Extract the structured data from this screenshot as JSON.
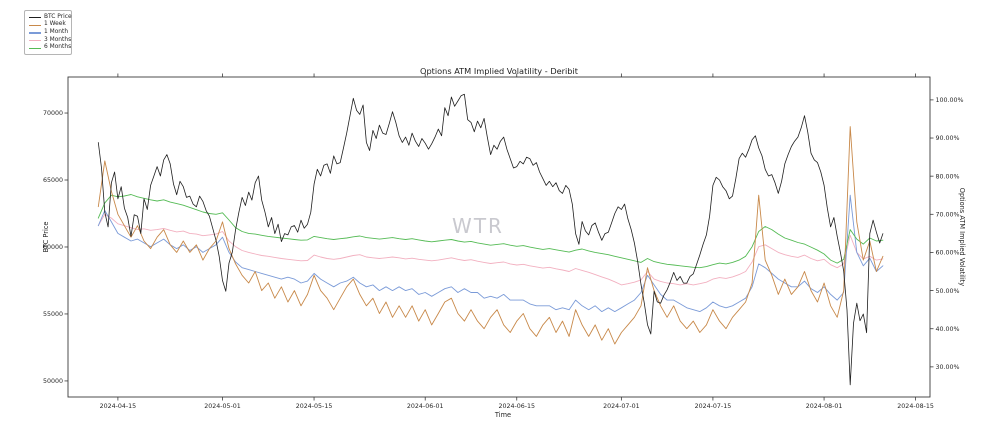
{
  "figure": {
    "title": "Options ATM Implied Volatility - Deribit",
    "watermark": "WTR",
    "background": "#ffffff"
  },
  "legend": {
    "items": [
      {
        "label": "BTC Price",
        "color": "#1f1f1f"
      },
      {
        "label": "1 Week",
        "color": "#c8894a"
      },
      {
        "label": "1 Month",
        "color": "#7b9bd8"
      },
      {
        "label": "3 Months",
        "color": "#f2b0c0"
      },
      {
        "label": "6 Months",
        "color": "#55bb55"
      }
    ]
  },
  "axes": {
    "left": {
      "label": "BTC Price",
      "ticks": [
        50000,
        55000,
        60000,
        65000,
        70000
      ],
      "range": [
        48800,
        72690
      ]
    },
    "right": {
      "label": "Options ATM Implied Volatility",
      "tick_labels": [
        "30.00%",
        "40.00%",
        "50.00%",
        "60.00%",
        "70.00%",
        "80.00%",
        "90.00%",
        "100.00%"
      ],
      "tick_values": [
        30,
        40,
        50,
        60,
        70,
        80,
        90,
        100
      ],
      "range": [
        22.1,
        106.0
      ]
    },
    "x": {
      "label": "Time",
      "tick_labels": [
        "2024-04-15",
        "2024-05-01",
        "2024-05-15",
        "2024-06-01",
        "2024-06-15",
        "2024-07-01",
        "2024-07-15",
        "2024-08-01",
        "2024-08-15"
      ],
      "tick_days": [
        3,
        19,
        33,
        50,
        64,
        80,
        94,
        111,
        125
      ],
      "range_days": [
        -4.63,
        127.2
      ],
      "day0_date": "2024-04-12"
    }
  },
  "chart_data": {
    "type": "line",
    "title": "Options ATM Implied Volatility - Deribit",
    "xlabel": "Time",
    "ylabel_left": "BTC Price",
    "ylabel_right": "Options ATM Implied Volatility",
    "x_start_date": "2024-04-12",
    "x_end_date": "2024-08-10",
    "grid": false,
    "legend_position": "upper-left-outside",
    "series": [
      {
        "name": "BTC Price",
        "axis": "price",
        "color": "#1f1f1f",
        "day_step": 0.5,
        "values": [
          67800,
          65900,
          62600,
          61500,
          64800,
          65600,
          63600,
          64500,
          62900,
          62200,
          60800,
          62400,
          62300,
          61000,
          63600,
          62800,
          64600,
          65300,
          66000,
          65300,
          66500,
          66900,
          66200,
          64700,
          63900,
          64900,
          64500,
          63700,
          63800,
          63200,
          63000,
          63800,
          63400,
          62700,
          62300,
          61400,
          60500,
          59300,
          57500,
          56700,
          58800,
          59600,
          61300,
          62600,
          63700,
          63100,
          64100,
          63500,
          64800,
          65300,
          63500,
          62600,
          61500,
          62200,
          61000,
          61700,
          60400,
          61000,
          60900,
          61500,
          61600,
          61100,
          62000,
          61400,
          61700,
          62600,
          64700,
          65800,
          65300,
          66100,
          66200,
          65500,
          66800,
          66200,
          66300,
          67400,
          68500,
          69800,
          71100,
          70200,
          69900,
          70600,
          67800,
          67200,
          68700,
          68100,
          69100,
          68500,
          68400,
          69200,
          70100,
          69300,
          68300,
          67800,
          68200,
          67600,
          68500,
          67900,
          67500,
          68100,
          67750,
          67300,
          67700,
          68200,
          68800,
          68300,
          70400,
          69800,
          71200,
          70500,
          70900,
          71300,
          71400,
          69500,
          69300,
          68600,
          69400,
          68900,
          69600,
          68200,
          66900,
          67600,
          67300,
          67900,
          68200,
          67300,
          66600,
          65900,
          66000,
          66400,
          66200,
          66700,
          66600,
          66100,
          66300,
          65600,
          65100,
          64600,
          64900,
          64500,
          64800,
          64200,
          64000,
          64600,
          64300,
          63200,
          61000,
          60200,
          61900,
          61200,
          60900,
          61600,
          61800,
          61100,
          60500,
          61000,
          61100,
          61800,
          62500,
          63000,
          62800,
          63200,
          62100,
          61300,
          60300,
          58900,
          57200,
          55800,
          54200,
          53500,
          56700,
          55900,
          55800,
          56400,
          56800,
          57400,
          58100,
          57500,
          57800,
          57300,
          57300,
          57800,
          58000,
          58700,
          59400,
          60200,
          60900,
          62300,
          64600,
          65200,
          65000,
          64500,
          64200,
          63600,
          63800,
          65100,
          66600,
          67000,
          66700,
          67300,
          68000,
          68300,
          67400,
          66800,
          65800,
          65300,
          65400,
          64800,
          64000,
          64900,
          66200,
          66900,
          67500,
          67900,
          68200,
          68900,
          69800,
          68600,
          67000,
          66500,
          66300,
          65600,
          64600,
          62900,
          61500,
          62200,
          60800,
          59600,
          58200,
          55300,
          49700,
          54300,
          55800,
          54500,
          55000,
          53600,
          61000,
          62000,
          61100,
          60300,
          61000
        ]
      },
      {
        "name": "1 Week",
        "axis": "vol",
        "color": "#c8894a",
        "day_step": 1,
        "values": [
          72,
          84,
          76,
          70,
          67,
          64,
          67,
          63,
          61,
          64,
          66,
          62,
          60,
          63,
          60,
          62,
          58,
          61,
          63,
          68,
          61,
          57,
          54,
          52,
          55,
          50,
          52,
          48,
          51,
          47,
          50,
          46,
          49,
          54,
          50,
          48,
          45,
          48,
          51,
          53,
          49,
          46,
          48,
          44,
          47,
          43,
          46,
          43,
          46,
          42,
          45,
          41,
          44,
          47,
          48,
          44,
          42,
          45,
          42,
          40,
          43,
          45,
          41,
          39,
          42,
          44,
          40,
          38,
          41,
          43,
          39,
          42,
          38,
          45,
          41,
          38,
          41,
          37,
          40,
          36,
          39,
          41,
          43,
          46,
          56,
          50,
          46,
          43,
          46,
          42,
          40,
          42,
          39,
          41,
          45,
          42,
          40,
          43,
          45,
          47,
          52,
          75,
          58,
          54,
          49,
          53,
          49,
          51,
          55,
          50,
          47,
          52,
          46,
          43,
          50,
          93,
          68,
          58,
          63,
          55,
          59
        ]
      },
      {
        "name": "1 Month",
        "axis": "vol",
        "color": "#7b9bd8",
        "day_step": 1,
        "values": [
          67,
          71,
          68,
          65,
          64,
          63,
          63.5,
          62.5,
          61.5,
          62.5,
          63.5,
          62,
          61,
          62,
          60.5,
          61.5,
          60,
          61,
          62,
          64,
          60,
          57.5,
          56,
          55.5,
          55,
          54.5,
          54,
          53.5,
          53,
          53.5,
          53,
          52,
          52.5,
          54.5,
          53,
          52,
          51,
          52,
          52.5,
          53.5,
          52,
          51,
          51.5,
          50,
          51,
          50,
          51,
          50,
          50.5,
          49,
          49.5,
          48.5,
          49.5,
          50.5,
          51,
          49.5,
          50.5,
          49.5,
          49.5,
          48,
          48.5,
          48,
          49,
          47.5,
          47.5,
          47.5,
          46.5,
          46,
          46,
          46,
          45,
          45.5,
          45,
          47.5,
          46,
          45,
          46,
          44.5,
          45.5,
          44.5,
          45.5,
          46.5,
          47.5,
          49.5,
          54,
          51.5,
          49,
          47.5,
          47.5,
          46.5,
          45.5,
          45,
          44.5,
          45.5,
          47,
          46,
          45.5,
          46,
          47,
          48,
          51,
          57,
          56,
          54.5,
          53,
          52,
          51,
          51,
          52.5,
          50.5,
          49.5,
          51,
          49,
          47.5,
          49.5,
          75,
          60,
          56.5,
          58.5,
          55,
          56.5
        ]
      },
      {
        "name": "3 Months",
        "axis": "vol",
        "color": "#f2b0c0",
        "day_step": 1,
        "values": [
          67,
          70,
          69,
          67.5,
          67,
          66.5,
          66,
          66.2,
          65.8,
          66,
          66.3,
          65.8,
          65.4,
          65.6,
          65,
          64.8,
          64.4,
          64.6,
          64.8,
          65.5,
          63,
          61.5,
          60.5,
          60,
          59.6,
          59.2,
          59,
          58.7,
          58.4,
          58.2,
          58,
          57.8,
          57.9,
          59.3,
          58.8,
          58.4,
          58.2,
          58.4,
          58.8,
          59.2,
          59.4,
          58.8,
          58.6,
          58.4,
          58.6,
          58.8,
          58.6,
          58.3,
          58.5,
          58.2,
          58,
          57.8,
          58,
          58.3,
          58.6,
          58.2,
          57.9,
          58.1,
          57.7,
          57.4,
          57.1,
          57.3,
          57.5,
          57,
          56.7,
          56.9,
          56.5,
          56.2,
          55.9,
          56.1,
          55.7,
          55.4,
          55,
          55.8,
          55.3,
          54.8,
          54.2,
          53.6,
          53,
          52.3,
          51.5,
          51.8,
          52.2,
          52.8,
          55,
          53,
          52.4,
          52,
          51.8,
          51.5,
          51.8,
          51.5,
          51.8,
          52.2,
          53,
          53.4,
          53.2,
          53.6,
          54.2,
          55,
          57.5,
          61.5,
          62,
          61,
          60,
          59.4,
          59,
          58.7,
          59.3,
          58.4,
          57.8,
          58.2,
          56.8,
          56,
          57,
          64.5,
          60,
          58.3,
          59,
          58,
          58.3
        ]
      },
      {
        "name": "6 Months",
        "axis": "vol",
        "color": "#55bb55",
        "day_step": 1,
        "values": [
          69,
          73,
          75,
          74.6,
          74.8,
          75.2,
          74.6,
          74.2,
          73.8,
          73.5,
          73.8,
          73.2,
          72.8,
          72.4,
          71.8,
          71.2,
          70.6,
          70.2,
          70,
          70.4,
          68.5,
          66.5,
          65.5,
          65,
          64.8,
          64.5,
          64.2,
          64,
          63.8,
          63.6,
          63.4,
          63.2,
          63.3,
          64.2,
          63.9,
          63.6,
          63.4,
          63.6,
          63.8,
          64.1,
          64.3,
          63.9,
          63.7,
          63.5,
          63.7,
          63.9,
          63.6,
          63.4,
          63.6,
          63.3,
          63,
          62.8,
          63,
          63.2,
          63.4,
          63,
          62.7,
          62.9,
          62.5,
          62.2,
          61.9,
          62.1,
          62.3,
          61.9,
          61.6,
          61.8,
          61.4,
          61.1,
          60.8,
          61,
          60.7,
          60.4,
          60.1,
          60.6,
          60.9,
          60.4,
          60,
          59.7,
          59.4,
          59,
          58.6,
          58.2,
          57.8,
          57.4,
          58.4,
          57.6,
          57.2,
          56.9,
          56.7,
          56.5,
          56.3,
          56.1,
          56,
          56.3,
          56.8,
          57.2,
          57,
          57.4,
          58,
          59,
          61.5,
          65.5,
          66.8,
          66,
          64.8,
          63.8,
          63.2,
          62.6,
          62.2,
          61.4,
          60.6,
          59.6,
          58,
          57.2,
          58.2,
          66,
          63.5,
          62.2,
          63.8,
          63,
          63.2
        ]
      }
    ]
  }
}
